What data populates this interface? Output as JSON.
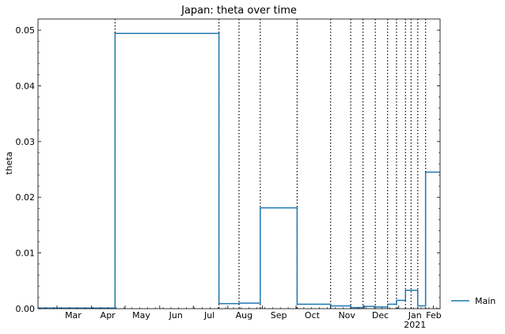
{
  "chart_data": {
    "type": "line",
    "title": "Japan: theta over time",
    "xlabel": "",
    "ylabel": "theta",
    "x_axis": {
      "scale": "date",
      "range": [
        "2020-02-13",
        "2021-02-07"
      ],
      "tick_labels": [
        {
          "date": "2020-03-01",
          "label": "Mar"
        },
        {
          "date": "2020-04-01",
          "label": "Apr"
        },
        {
          "date": "2020-05-01",
          "label": "May"
        },
        {
          "date": "2020-06-01",
          "label": "Jun"
        },
        {
          "date": "2020-07-01",
          "label": "Jul"
        },
        {
          "date": "2020-08-01",
          "label": "Aug"
        },
        {
          "date": "2020-09-01",
          "label": "Sep"
        },
        {
          "date": "2020-10-01",
          "label": "Oct"
        },
        {
          "date": "2020-11-01",
          "label": "Nov"
        },
        {
          "date": "2020-12-01",
          "label": "Dec"
        },
        {
          "date": "2021-01-01",
          "label": "Jan"
        },
        {
          "date": "2021-02-01",
          "label": "Feb"
        }
      ],
      "year_label": {
        "date": "2021-01-01",
        "label": "2021"
      }
    },
    "y_axis": {
      "range": [
        0,
        0.052
      ],
      "ticks": [
        0.0,
        0.01,
        0.02,
        0.03,
        0.04,
        0.05
      ],
      "tick_labels": [
        "0.00",
        "0.01",
        "0.02",
        "0.03",
        "0.04",
        "0.05"
      ]
    },
    "grid": false,
    "legend": {
      "position": "right-bottom, outside plot",
      "entries": [
        "Main"
      ]
    },
    "series": [
      {
        "name": "Main",
        "color": "#1f77b4",
        "style": "step",
        "steps": [
          {
            "start": "2020-02-13",
            "end": "2020-04-22",
            "value": 0.0001
          },
          {
            "start": "2020-04-22",
            "end": "2020-07-24",
            "value": 0.0494
          },
          {
            "start": "2020-07-24",
            "end": "2020-08-11",
            "value": 0.0009
          },
          {
            "start": "2020-08-11",
            "end": "2020-08-30",
            "value": 0.001
          },
          {
            "start": "2020-08-30",
            "end": "2020-10-02",
            "value": 0.0181
          },
          {
            "start": "2020-10-02",
            "end": "2020-11-01",
            "value": 0.0008
          },
          {
            "start": "2020-11-01",
            "end": "2020-11-19",
            "value": 0.0005
          },
          {
            "start": "2020-11-19",
            "end": "2020-11-30",
            "value": 0.0002
          },
          {
            "start": "2020-11-30",
            "end": "2020-12-11",
            "value": 0.0004
          },
          {
            "start": "2020-12-11",
            "end": "2020-12-22",
            "value": 0.0003
          },
          {
            "start": "2020-12-22",
            "end": "2020-12-30",
            "value": 0.0008
          },
          {
            "start": "2020-12-30",
            "end": "2021-01-07",
            "value": 0.0015
          },
          {
            "start": "2021-01-07",
            "end": "2021-01-18",
            "value": 0.0033
          },
          {
            "start": "2021-01-18",
            "end": "2021-01-25",
            "value": 0.0005
          },
          {
            "start": "2021-01-25",
            "end": "2021-02-07",
            "value": 0.0245
          }
        ]
      }
    ],
    "changepoints": [
      "2020-04-22",
      "2020-07-24",
      "2020-08-11",
      "2020-08-30",
      "2020-10-02",
      "2020-11-01",
      "2020-11-19",
      "2020-11-30",
      "2020-12-11",
      "2020-12-22",
      "2020-12-30",
      "2021-01-07",
      "2021-01-12",
      "2021-01-18",
      "2021-01-25"
    ],
    "changepoint_style": "black dotted vertical lines"
  }
}
